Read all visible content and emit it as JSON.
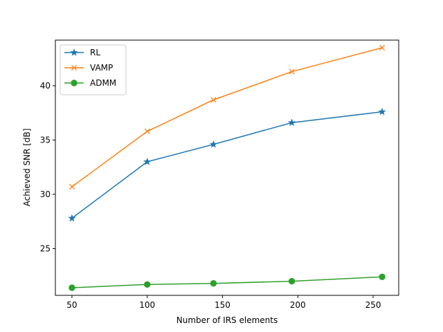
{
  "chart_data": {
    "type": "line",
    "title": "",
    "xlabel": "Number of IRS elements",
    "ylabel": "Achieved SNR [dB]",
    "xlim": [
      39,
      267
    ],
    "ylim": [
      20.7,
      44.2
    ],
    "xticks": [
      50,
      100,
      150,
      200,
      250
    ],
    "yticks": [
      25,
      30,
      35,
      40
    ],
    "x": [
      50,
      100,
      144,
      196,
      256
    ],
    "series": [
      {
        "name": "RL",
        "color": "#1f77b4",
        "marker": "star",
        "values": [
          27.8,
          33.0,
          34.6,
          36.6,
          37.6
        ]
      },
      {
        "name": "VAMP",
        "color": "#ff7f0e",
        "marker": "x",
        "values": [
          30.7,
          35.8,
          38.7,
          41.3,
          43.5
        ]
      },
      {
        "name": "ADMM",
        "color": "#2ca02c",
        "marker": "circle",
        "values": [
          21.4,
          21.7,
          21.8,
          22.0,
          22.4
        ]
      }
    ],
    "legend_position": "top-left",
    "grid": false
  }
}
